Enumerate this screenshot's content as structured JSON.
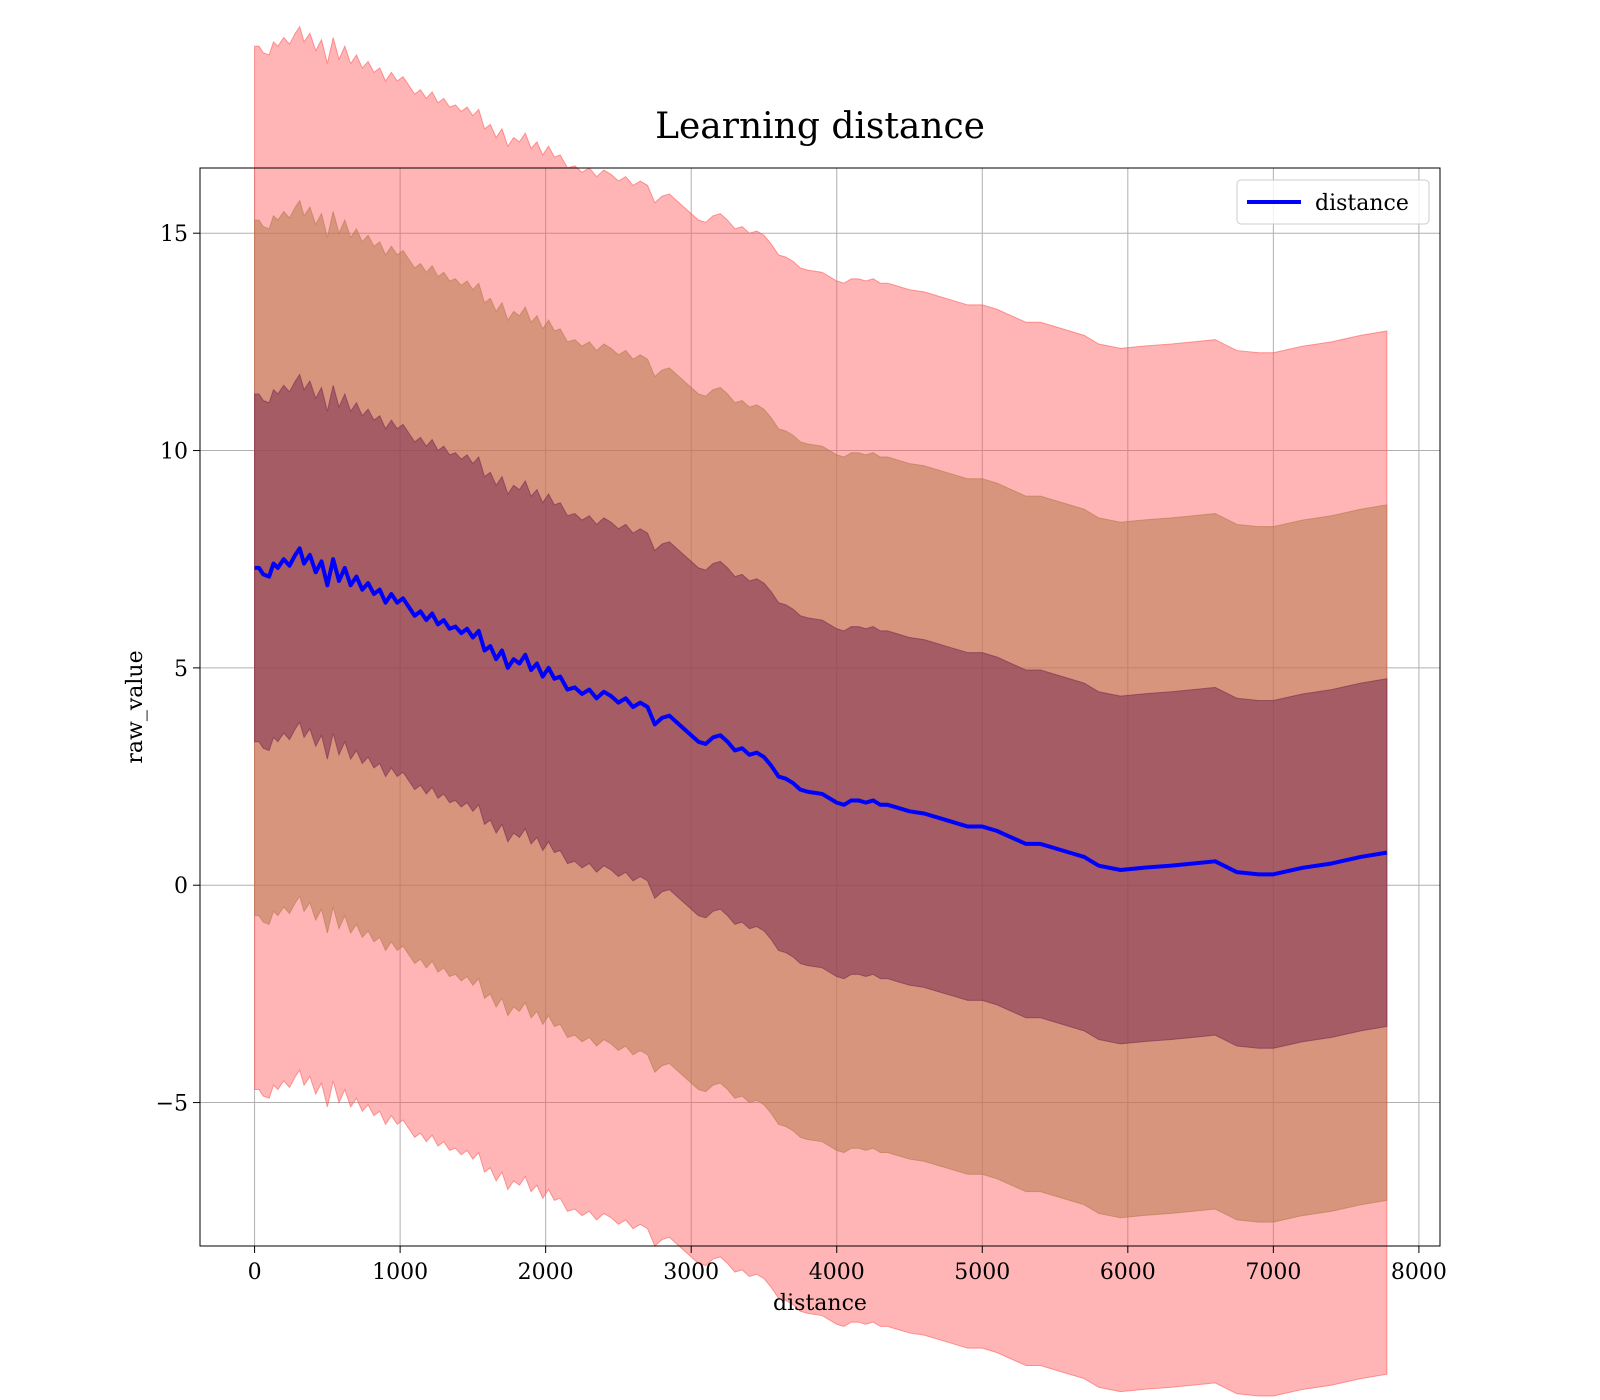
{
  "chart_data": {
    "type": "line",
    "title": "Learning distance",
    "xlabel": "distance",
    "ylabel": "raw_value",
    "xlim": [
      -375,
      8145
    ],
    "ylim": [
      -8.3,
      16.5
    ],
    "x_ticks": [
      0,
      1000,
      2000,
      3000,
      4000,
      5000,
      6000,
      7000,
      8000
    ],
    "x_tick_labels": [
      "0",
      "1000",
      "2000",
      "3000",
      "4000",
      "5000",
      "6000",
      "7000",
      "8000"
    ],
    "y_ticks": [
      -5,
      0,
      5,
      10,
      15
    ],
    "y_tick_labels": [
      "−5",
      "0",
      "5",
      "10",
      "15"
    ],
    "grid": true,
    "legend_position": "upper right",
    "series": [
      {
        "name": "distance",
        "color": "#0000ff",
        "x": [
          0,
          30,
          60,
          100,
          130,
          160,
          200,
          240,
          280,
          310,
          340,
          380,
          420,
          460,
          500,
          540,
          580,
          620,
          660,
          700,
          740,
          780,
          820,
          860,
          900,
          940,
          980,
          1020,
          1060,
          1100,
          1140,
          1180,
          1220,
          1260,
          1300,
          1340,
          1380,
          1420,
          1460,
          1500,
          1540,
          1580,
          1620,
          1660,
          1700,
          1740,
          1780,
          1820,
          1860,
          1900,
          1940,
          1980,
          2020,
          2060,
          2100,
          2150,
          2200,
          2250,
          2300,
          2350,
          2400,
          2450,
          2500,
          2550,
          2600,
          2650,
          2700,
          2750,
          2800,
          2850,
          2900,
          2950,
          3000,
          3050,
          3100,
          3150,
          3200,
          3250,
          3300,
          3350,
          3400,
          3450,
          3500,
          3550,
          3600,
          3650,
          3700,
          3750,
          3800,
          3900,
          4000,
          4050,
          4100,
          4150,
          4200,
          4250,
          4300,
          4350,
          4400,
          4500,
          4600,
          4700,
          4800,
          4900,
          5000,
          5100,
          5200,
          5300,
          5400,
          5500,
          5600,
          5700,
          5800,
          5950,
          6100,
          6300,
          6450,
          6600,
          6750,
          6900,
          7000,
          7200,
          7400,
          7600,
          7780
        ],
        "values": [
          7.3,
          7.3,
          7.15,
          7.1,
          7.4,
          7.3,
          7.5,
          7.35,
          7.6,
          7.75,
          7.4,
          7.6,
          7.2,
          7.45,
          6.9,
          7.5,
          7.0,
          7.3,
          6.9,
          7.1,
          6.8,
          6.95,
          6.7,
          6.8,
          6.5,
          6.7,
          6.5,
          6.6,
          6.4,
          6.2,
          6.3,
          6.1,
          6.25,
          6.0,
          6.1,
          5.9,
          5.95,
          5.8,
          5.9,
          5.7,
          5.85,
          5.4,
          5.5,
          5.2,
          5.4,
          5.0,
          5.2,
          5.1,
          5.3,
          4.95,
          5.1,
          4.8,
          5.0,
          4.75,
          4.8,
          4.5,
          4.55,
          4.4,
          4.5,
          4.3,
          4.45,
          4.35,
          4.2,
          4.3,
          4.1,
          4.2,
          4.1,
          3.7,
          3.85,
          3.9,
          3.75,
          3.6,
          3.45,
          3.3,
          3.25,
          3.4,
          3.45,
          3.3,
          3.1,
          3.15,
          3.0,
          3.05,
          2.95,
          2.75,
          2.5,
          2.45,
          2.35,
          2.2,
          2.15,
          2.1,
          1.9,
          1.85,
          1.95,
          1.95,
          1.9,
          1.95,
          1.85,
          1.85,
          1.8,
          1.7,
          1.65,
          1.55,
          1.45,
          1.35,
          1.35,
          1.25,
          1.1,
          0.95,
          0.95,
          0.85,
          0.75,
          0.65,
          0.45,
          0.35,
          0.4,
          0.45,
          0.5,
          0.55,
          0.3,
          0.25,
          0.25,
          0.4,
          0.5,
          0.65,
          0.75
        ],
        "bands": [
          {
            "k": 1,
            "fill": "#7b2d50",
            "opacity": 0.55
          },
          {
            "k": 2,
            "fill": "#b87a4f",
            "opacity": 0.55
          },
          {
            "k": 3,
            "fill": "#ff5a5a",
            "opacity": 0.45
          }
        ],
        "band_half_width_k1": 4.0
      }
    ]
  }
}
